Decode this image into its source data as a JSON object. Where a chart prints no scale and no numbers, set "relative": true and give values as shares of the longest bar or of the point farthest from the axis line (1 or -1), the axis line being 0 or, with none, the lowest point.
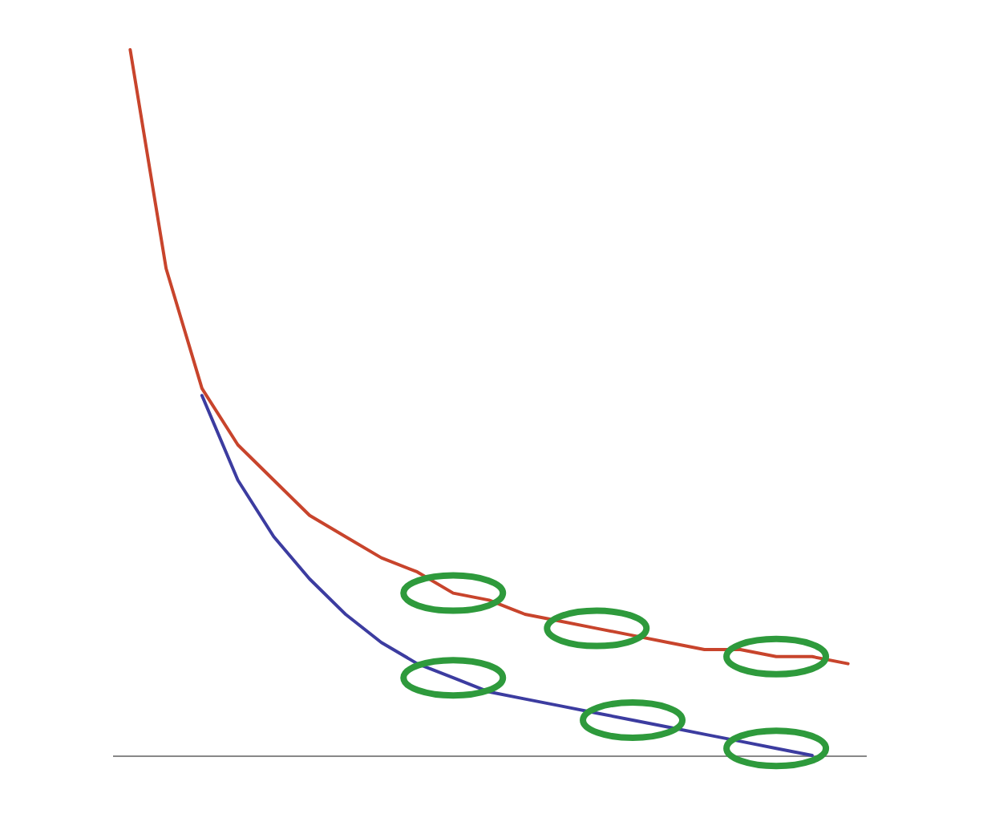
{
  "chart_data": {
    "type": "line",
    "relative": true,
    "categories": [
      null,
      null,
      null,
      null,
      null,
      null,
      null,
      null,
      null,
      null,
      null,
      null,
      null,
      null,
      null,
      null,
      null,
      null,
      null,
      null,
      null
    ],
    "series": [
      {
        "color": "#c8442c",
        "values": [
          1.0,
          0.69,
          0.52,
          0.44,
          0.39,
          0.34,
          0.31,
          0.28,
          0.26,
          0.23,
          0.22,
          0.2,
          0.19,
          0.18,
          0.17,
          0.16,
          0.15,
          0.15,
          0.14,
          0.14,
          0.13
        ]
      },
      {
        "color": "#3c3ca0",
        "values": [
          null,
          null,
          0.51,
          0.39,
          0.31,
          0.25,
          0.2,
          0.16,
          0.13,
          0.11,
          0.09,
          0.08,
          0.07,
          0.06,
          0.05,
          0.04,
          0.03,
          0.02,
          0.01,
          0.0,
          null
        ]
      }
    ]
  }
}
